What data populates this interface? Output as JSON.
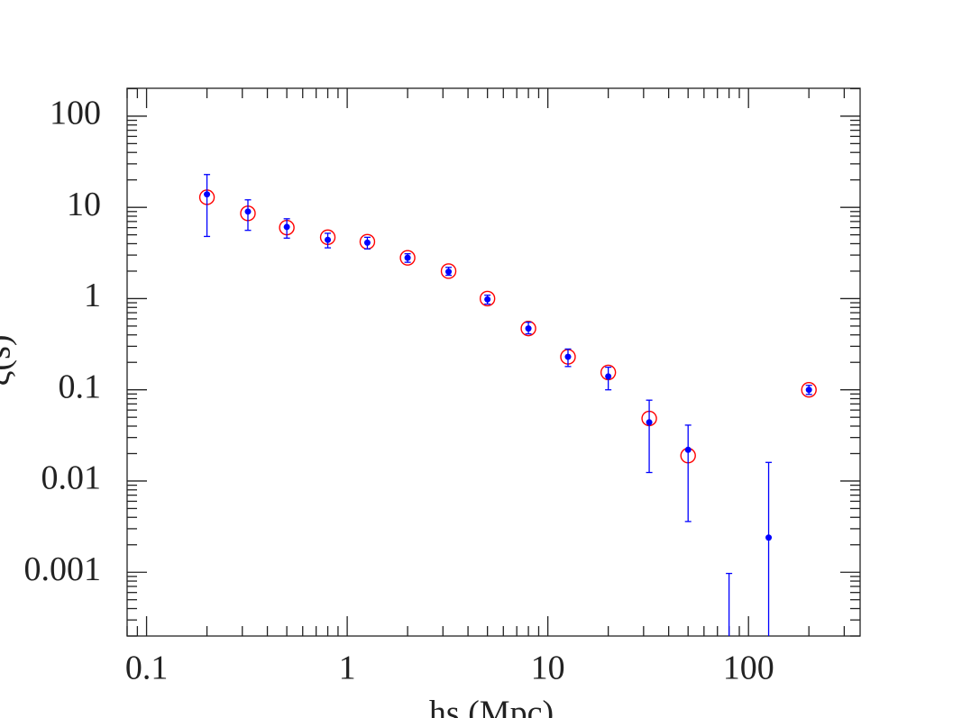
{
  "chart_data": {
    "type": "scatter",
    "x_label": "hs (Mpc)",
    "y_label": "ξ(s)",
    "x": [
      0.2,
      0.32,
      0.5,
      0.8,
      1.26,
      2,
      3.2,
      5,
      8,
      12.6,
      20,
      32,
      50,
      80,
      126,
      200
    ],
    "series": [
      {
        "color": "#ff0000",
        "marker": "open-circle",
        "values": [
          12.9,
          8.6,
          6.0,
          4.7,
          4.2,
          2.8,
          2.0,
          1.0,
          0.47,
          0.23,
          0.155,
          0.0485,
          0.019,
          null,
          null,
          0.1
        ]
      },
      {
        "color": "#0000ff",
        "marker": "dot",
        "values": [
          13.9,
          9.0,
          6.1,
          4.4,
          4.1,
          2.8,
          1.97,
          0.98,
          0.47,
          0.23,
          0.14,
          0.044,
          0.022,
          0.00015,
          0.0024,
          0.1
        ],
        "lower": [
          4.8,
          5.6,
          4.6,
          3.6,
          3.5,
          2.5,
          1.8,
          0.87,
          0.41,
          0.18,
          0.1,
          0.0124,
          0.0036,
          0.0001,
          0.0001,
          0.089
        ],
        "upper": [
          22.9,
          12.1,
          7.5,
          5.2,
          4.7,
          3.1,
          2.2,
          1.09,
          0.55,
          0.28,
          0.177,
          0.077,
          0.041,
          0.00097,
          0.016,
          0.112
        ]
      }
    ],
    "xscale": "log",
    "yscale": "log",
    "minor_ticks": true,
    "xlim": [
      0.08,
      360
    ],
    "ylim": [
      0.0002,
      202
    ],
    "xticks": [
      0.1,
      1,
      10,
      100
    ],
    "yticks": [
      0.001,
      0.01,
      0.1,
      1,
      10,
      100
    ]
  }
}
